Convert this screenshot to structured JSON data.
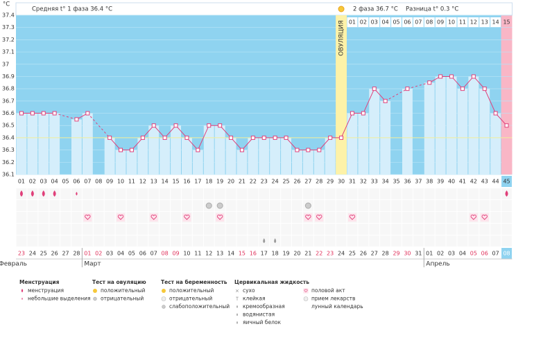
{
  "header": {
    "unit": "°C",
    "phase1": "Средняя t° 1 фаза 36.4 °C",
    "phase2": "2 фаза 36.7 °C",
    "diff": "Разница t° 0.3 °C"
  },
  "chart_data": {
    "type": "line",
    "ovulation_label": "ОВУЛЯЦИЯ",
    "ovulation_day": "30",
    "categories": [
      "01",
      "02",
      "03",
      "04",
      "05",
      "06",
      "07",
      "08",
      "09",
      "10",
      "11",
      "12",
      "13",
      "14",
      "15",
      "16",
      "17",
      "18",
      "19",
      "20",
      "21",
      "22",
      "23",
      "24",
      "25",
      "26",
      "27",
      "28",
      "29",
      "30",
      "31",
      "32",
      "33",
      "34",
      "35",
      "36",
      "37",
      "38",
      "39",
      "40",
      "41",
      "42",
      "43",
      "44",
      "45"
    ],
    "phase2_days": [
      "01",
      "02",
      "03",
      "04",
      "05",
      "06",
      "07",
      "08",
      "09",
      "10",
      "11",
      "12",
      "13",
      "14",
      "15"
    ],
    "values": [
      36.6,
      36.6,
      36.6,
      36.6,
      null,
      36.55,
      36.6,
      null,
      36.4,
      36.3,
      36.3,
      36.4,
      36.5,
      36.4,
      36.5,
      36.4,
      36.3,
      36.5,
      36.5,
      36.4,
      36.3,
      36.4,
      36.4,
      36.4,
      36.4,
      36.3,
      36.3,
      36.3,
      36.4,
      36.4,
      36.6,
      36.6,
      36.8,
      36.7,
      null,
      36.8,
      null,
      36.85,
      36.9,
      36.9,
      36.8,
      36.9,
      36.8,
      36.6,
      36.5
    ],
    "color": "#e0407a",
    "coverline": 36.4,
    "ylim": [
      36.1,
      37.4
    ],
    "yticks": [
      36.1,
      36.2,
      36.3,
      36.4,
      36.5,
      36.6,
      36.7,
      36.8,
      36.9,
      37,
      37.1,
      37.2,
      37.3,
      37.4
    ],
    "grid": true,
    "dates": [
      "23",
      "24",
      "25",
      "26",
      "27",
      "28",
      "01",
      "02",
      "03",
      "04",
      "05",
      "06",
      "07",
      "08",
      "09",
      "10",
      "11",
      "12",
      "13",
      "14",
      "15",
      "16",
      "17",
      "18",
      "19",
      "20",
      "21",
      "22",
      "23",
      "24",
      "25",
      "26",
      "27",
      "28",
      "29",
      "30",
      "31",
      "01",
      "02",
      "03",
      "04",
      "05",
      "06",
      "07",
      "08"
    ],
    "weekend": [
      true,
      false,
      false,
      false,
      false,
      false,
      true,
      true,
      false,
      false,
      false,
      false,
      false,
      true,
      true,
      false,
      false,
      false,
      false,
      false,
      true,
      true,
      false,
      false,
      false,
      false,
      false,
      true,
      true,
      false,
      false,
      false,
      false,
      false,
      true,
      true,
      false,
      false,
      false,
      false,
      false,
      true,
      true,
      false,
      false
    ],
    "highlighted_day": "45",
    "months": [
      {
        "label": "Февраль",
        "start": "01"
      },
      {
        "label": "Март",
        "start": "07"
      },
      {
        "label": "Апрель",
        "start": "38"
      }
    ],
    "events": {
      "menstruation": [
        "01",
        "02",
        "03",
        "04",
        "45"
      ],
      "spotting": [
        "06"
      ],
      "ovulation_test_negative": [
        "18",
        "19",
        "27"
      ],
      "intercourse": [
        "07",
        "10",
        "13",
        "16",
        "19",
        "27",
        "28",
        "31",
        "42",
        "43"
      ],
      "egg_white": [
        "23",
        "24"
      ]
    }
  },
  "legend": [
    {
      "title": "Менструация",
      "items": [
        "менструация",
        "небольшие выделения"
      ]
    },
    {
      "title": "Тест на овуляцию",
      "items": [
        "положительный",
        "отрицательный"
      ]
    },
    {
      "title": "Тест на беременность",
      "items": [
        "положительный",
        "отрицательный",
        "слабоположительный"
      ]
    },
    {
      "title": "Цервикальная жидкость",
      "items": [
        "сухо",
        "клейкая",
        "кремообразная",
        "водянистая",
        "яичный белок"
      ]
    },
    {
      "items": [
        "половой акт",
        "прием лекарств",
        "лунный календарь"
      ]
    }
  ]
}
